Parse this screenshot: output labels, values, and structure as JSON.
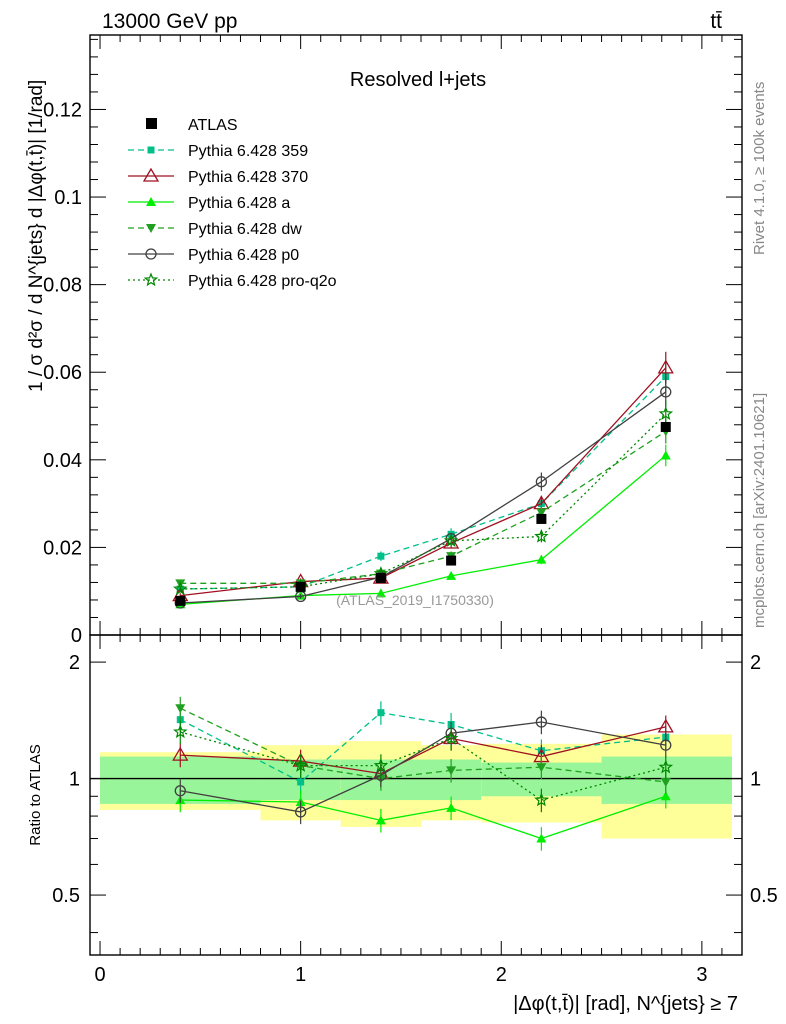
{
  "header": {
    "energy_label": "13000 GeV pp",
    "process_label": "tt̄"
  },
  "side_labels": {
    "rivet": "Rivet 4.1.0, ≥ 100k events",
    "mcplots": "mcplots.cern.ch [arXiv:2401.10621]"
  },
  "chart_data": {
    "type": "line",
    "title": "Resolved l+jets",
    "analysis_id": "(ATLAS_2019_I1750330)",
    "ylabel": "1 / σ d²σ / d N^{jets} d |Δφ(t,t̄)| [1/rad]",
    "xlabel": "|Δφ(t,t̄)| [rad], N^{jets} ≥ 7",
    "ratio_ylabel": "Ratio to ATLAS",
    "xlim": [
      -0.05,
      3.2
    ],
    "ylim": [
      0,
      0.137
    ],
    "ratio_ylim": [
      0.35,
      2.35
    ],
    "x_ticks": [
      "0",
      "1",
      "2",
      "3"
    ],
    "y_ticks": [
      "0",
      "0.02",
      "0.04",
      "0.06",
      "0.08",
      "0.1",
      "0.12"
    ],
    "ratio_ticks": [
      "0.5",
      "1",
      "2"
    ],
    "x": [
      0.4,
      1.0,
      1.4,
      1.75,
      2.2,
      2.82
    ],
    "bin_edges": [
      0,
      0.8,
      1.2,
      1.6,
      1.9,
      2.5,
      3.15
    ],
    "data": {
      "name": "ATLAS",
      "values": [
        0.0078,
        0.011,
        0.013,
        0.017,
        0.0265,
        0.0475
      ],
      "band_green": [
        0.14,
        0.12,
        0.12,
        0.12,
        0.1,
        0.14
      ],
      "band_yellow": [
        0.17,
        0.22,
        0.25,
        0.22,
        0.23,
        0.3
      ]
    },
    "series": [
      {
        "name": "Pythia 6.428 359",
        "color": "#00c08a",
        "dash": "dashed",
        "marker": "square-small",
        "values": [
          0.0105,
          0.011,
          0.018,
          0.023,
          0.03,
          0.059
        ],
        "ratio": [
          1.42,
          0.98,
          1.48,
          1.38,
          1.18,
          1.28
        ]
      },
      {
        "name": "Pythia 6.428 370",
        "color": "#a01020",
        "dash": "solid",
        "marker": "triangle-open",
        "values": [
          0.009,
          0.0122,
          0.013,
          0.021,
          0.03,
          0.061
        ],
        "ratio": [
          1.15,
          1.11,
          1.03,
          1.27,
          1.14,
          1.36
        ]
      },
      {
        "name": "Pythia 6.428 a",
        "color": "#00ee00",
        "dash": "solid",
        "marker": "triangle",
        "values": [
          0.007,
          0.009,
          0.0095,
          0.0135,
          0.0172,
          0.041
        ],
        "ratio": [
          0.88,
          0.87,
          0.78,
          0.84,
          0.7,
          0.9
        ]
      },
      {
        "name": "Pythia 6.428 dw",
        "color": "#20a020",
        "dash": "dashed",
        "marker": "triangle-down",
        "values": [
          0.0118,
          0.0118,
          0.014,
          0.018,
          0.028,
          0.0465
        ],
        "ratio": [
          1.52,
          1.08,
          1.0,
          1.05,
          1.07,
          0.98
        ]
      },
      {
        "name": "Pythia 6.428 p0",
        "color": "#404040",
        "dash": "solid",
        "marker": "circle-open",
        "values": [
          0.0073,
          0.0088,
          0.0132,
          0.022,
          0.035,
          0.0555
        ],
        "ratio": [
          0.93,
          0.82,
          1.02,
          1.31,
          1.4,
          1.22
        ]
      },
      {
        "name": "Pythia 6.428 pro-q2o",
        "color": "#008800",
        "dash": "dotted",
        "marker": "star-open",
        "values": [
          0.0105,
          0.011,
          0.014,
          0.0215,
          0.0225,
          0.0505
        ],
        "ratio": [
          1.32,
          1.08,
          1.08,
          1.27,
          0.88,
          1.07
        ]
      }
    ],
    "legend_position": "top-left"
  }
}
